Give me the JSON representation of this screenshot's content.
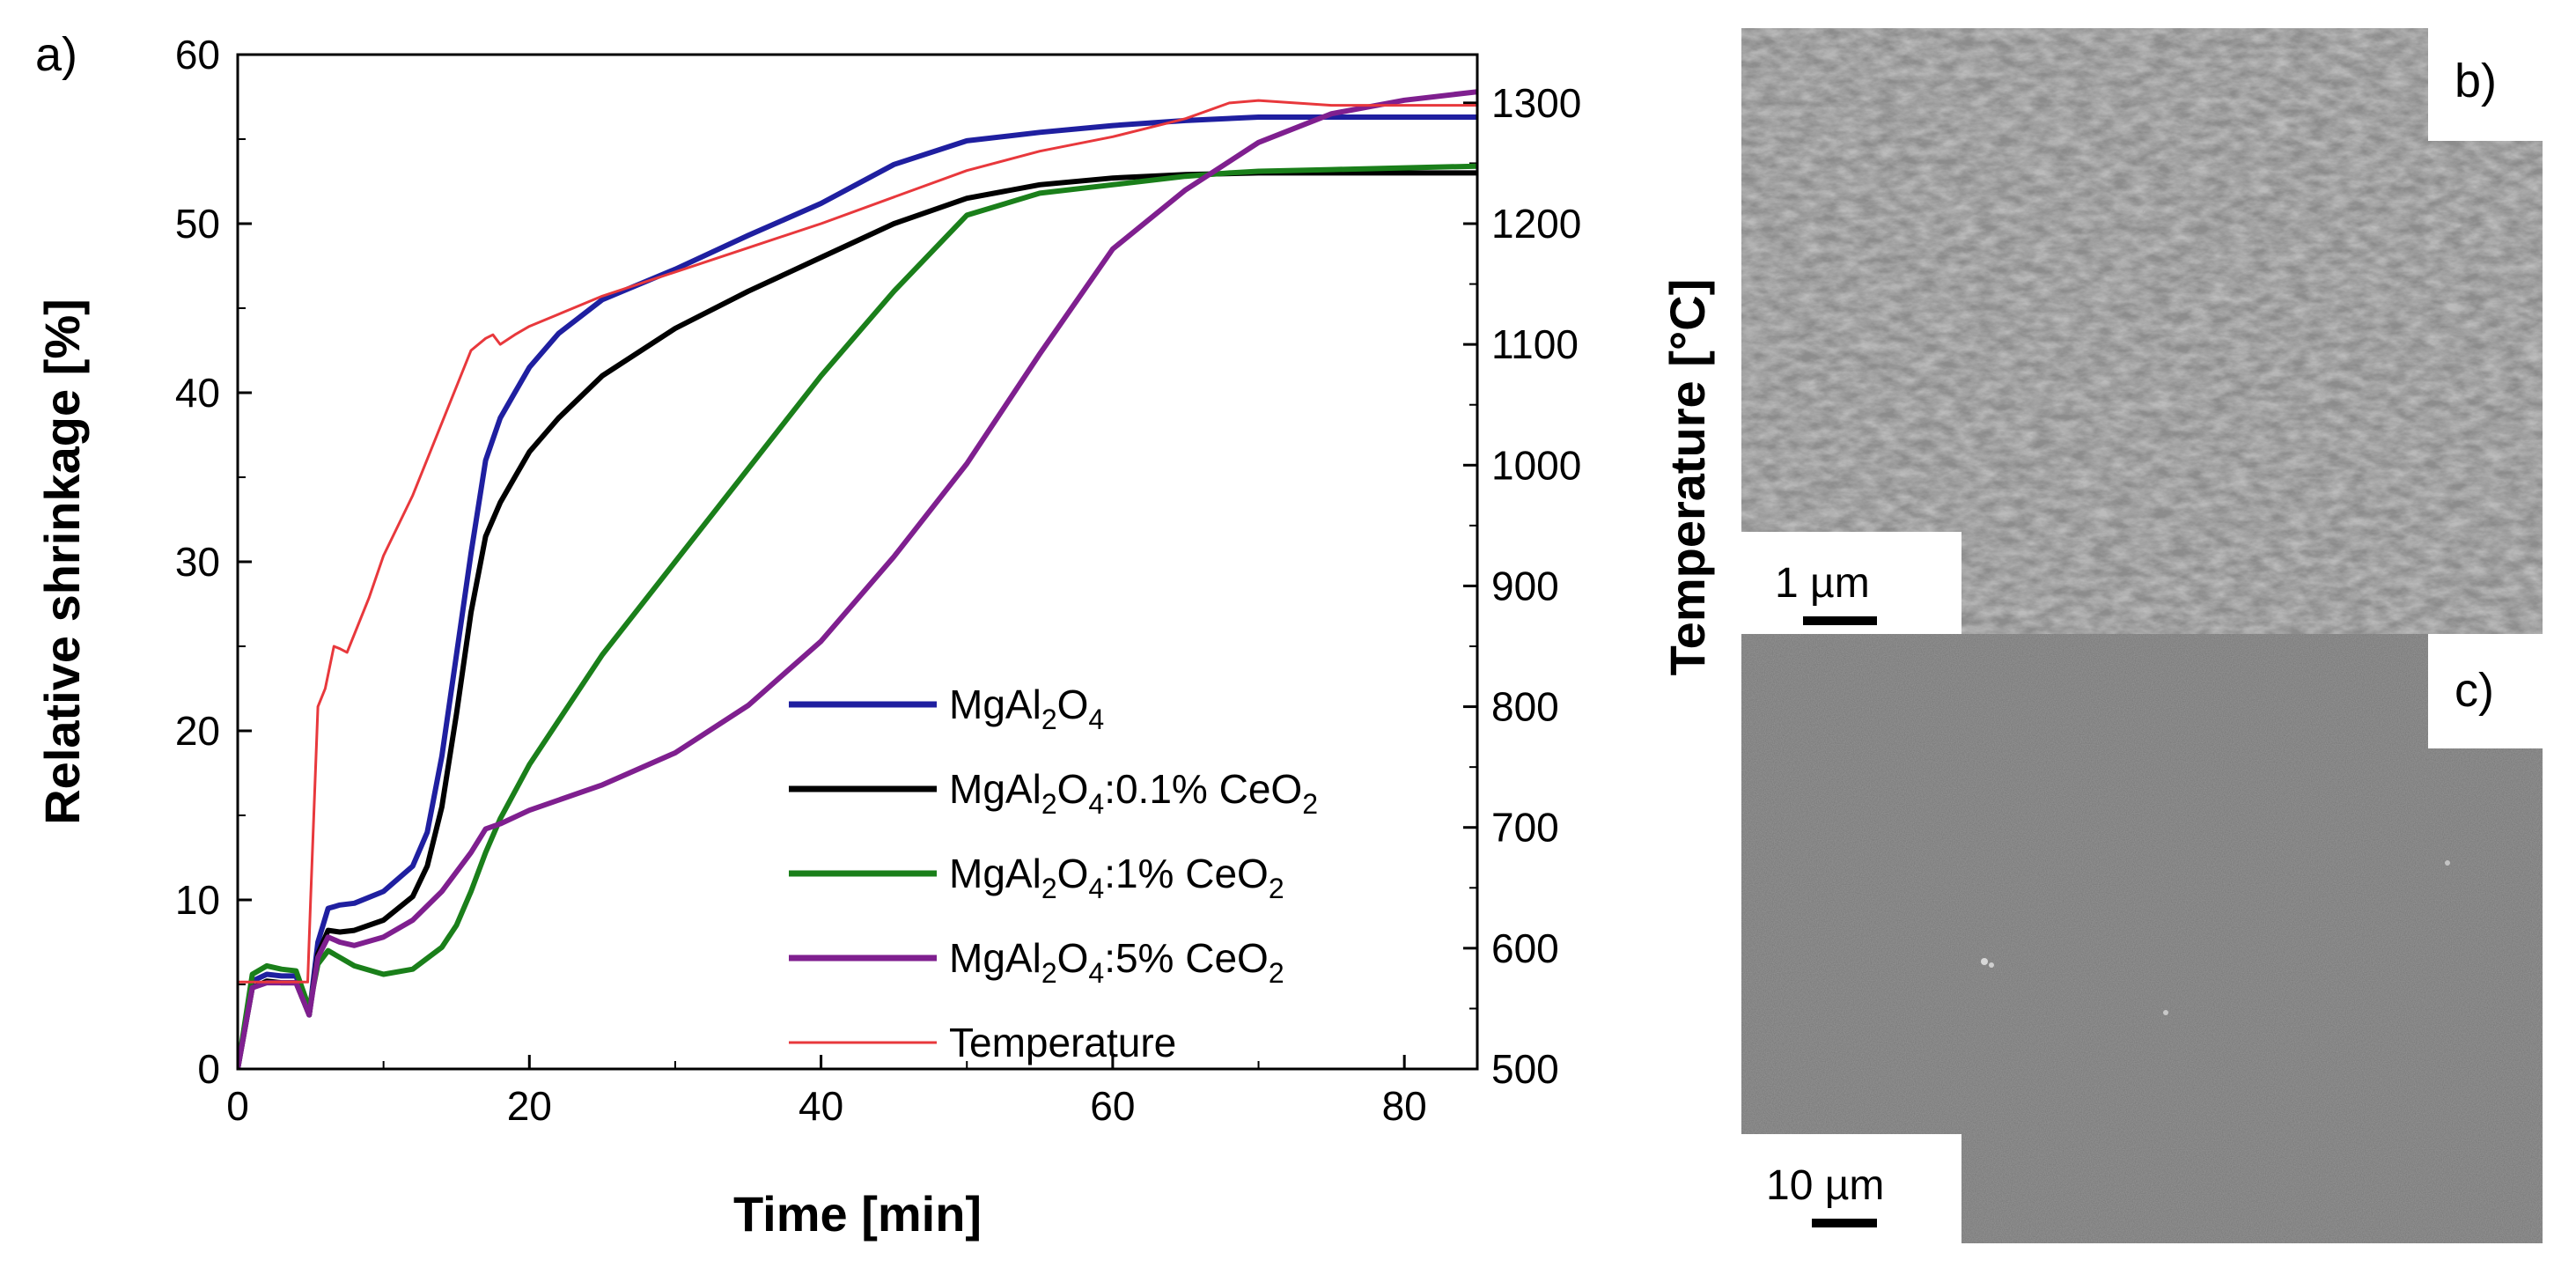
{
  "chart_data": {
    "type": "line",
    "panel_label": "a)",
    "xlabel": "Time [min]",
    "ylabel": "Relative shrinkage [%]",
    "y2label": "Temperature [°C]",
    "xlim": [
      0,
      85
    ],
    "ylim": [
      0,
      60
    ],
    "y2lim": [
      500,
      1340
    ],
    "xticks": [
      "0",
      "20",
      "40",
      "60",
      "80"
    ],
    "yticks": [
      "0",
      "10",
      "20",
      "30",
      "40",
      "50",
      "60"
    ],
    "y2ticks": [
      "500",
      "600",
      "700",
      "800",
      "900",
      "1000",
      "1100",
      "1200",
      "1300"
    ],
    "series": [
      {
        "name": "MgAl2O4",
        "legend": {
          "base": "MgAl",
          "s1": "2",
          "mid": "O",
          "s2": "4",
          "tail": ""
        },
        "color": "#1f1fa0",
        "axis": "left",
        "x": [
          0,
          1,
          2,
          3,
          4,
          4.9,
          5.5,
          6.2,
          7,
          8,
          10,
          12,
          13,
          14,
          15,
          16,
          17,
          18,
          19,
          20,
          22,
          25,
          30,
          35,
          40,
          45,
          50,
          55,
          60,
          65,
          70,
          75,
          80,
          85
        ],
        "y": [
          0,
          5.2,
          5.6,
          5.5,
          5.5,
          3.2,
          7.5,
          9.5,
          9.7,
          9.8,
          10.5,
          12,
          14,
          18.5,
          24.5,
          30.5,
          36,
          38.5,
          40,
          41.5,
          43.5,
          45.5,
          47.3,
          49.3,
          51.2,
          53.5,
          54.9,
          55.4,
          55.8,
          56.1,
          56.3,
          56.3,
          56.3,
          56.3
        ]
      },
      {
        "name": "MgAl2O4:0.1% CeO2",
        "legend": {
          "base": "MgAl",
          "s1": "2",
          "mid": "O",
          "s2": "4",
          "tail": ":0.1% CeO",
          "s3": "2"
        },
        "color": "#000000",
        "axis": "left",
        "x": [
          0,
          1,
          2,
          3,
          4,
          4.9,
          5.5,
          6.2,
          7,
          8,
          10,
          12,
          13,
          14,
          15,
          16,
          17,
          18,
          19,
          20,
          22,
          25,
          30,
          35,
          40,
          45,
          50,
          55,
          60,
          65,
          70,
          75,
          80,
          85
        ],
        "y": [
          0,
          4.8,
          5.2,
          5.1,
          5.1,
          3.2,
          6.8,
          8.2,
          8.1,
          8.2,
          8.8,
          10.2,
          12,
          15.5,
          21,
          27,
          31.5,
          33.5,
          35,
          36.5,
          38.5,
          41,
          43.8,
          46,
          48,
          50,
          51.5,
          52.3,
          52.7,
          52.9,
          53,
          53,
          53,
          53
        ]
      },
      {
        "name": "MgAl2O4:1% CeO2",
        "legend": {
          "base": "MgAl",
          "s1": "2",
          "mid": "O",
          "s2": "4",
          "tail": ":1% CeO",
          "s3": "2"
        },
        "color": "#1a7f1a",
        "axis": "left",
        "x": [
          0,
          1,
          2,
          3,
          4,
          4.9,
          5.5,
          6.2,
          7,
          8,
          10,
          12,
          14,
          15,
          16,
          17,
          18,
          20,
          25,
          30,
          35,
          40,
          45,
          50,
          55,
          60,
          65,
          68,
          70,
          75,
          80,
          85
        ],
        "y": [
          0,
          5.6,
          6.1,
          5.9,
          5.8,
          3.6,
          6.2,
          7,
          6.6,
          6.1,
          5.6,
          5.9,
          7.2,
          8.5,
          10.5,
          12.8,
          14.8,
          18,
          24.5,
          30,
          35.5,
          41,
          46,
          50.5,
          51.8,
          52.3,
          52.8,
          53,
          53.1,
          53.2,
          53.3,
          53.4
        ]
      },
      {
        "name": "MgAl2O4:5% CeO2",
        "legend": {
          "base": "MgAl",
          "s1": "2",
          "mid": "O",
          "s2": "4",
          "tail": ":5% CeO",
          "s3": "2"
        },
        "color": "#7f1f8f",
        "axis": "left",
        "x": [
          0,
          1,
          2,
          3,
          4,
          4.9,
          5.5,
          6.2,
          7,
          8,
          10,
          12,
          14,
          16,
          17,
          18,
          20,
          25,
          30,
          35,
          40,
          45,
          50,
          55,
          60,
          65,
          70,
          75,
          80,
          85
        ],
        "y": [
          0,
          4.8,
          5.1,
          5.1,
          5.1,
          3.2,
          6.6,
          7.8,
          7.5,
          7.3,
          7.8,
          8.8,
          10.5,
          12.8,
          14.2,
          14.5,
          15.3,
          16.8,
          18.7,
          21.5,
          25.3,
          30.3,
          35.8,
          42.3,
          48.5,
          52,
          54.8,
          56.5,
          57.3,
          57.8
        ]
      },
      {
        "name": "Temperature",
        "legend": {
          "base": "Temperature",
          "s1": "",
          "mid": "",
          "s2": "",
          "tail": ""
        },
        "color": "#e8383c",
        "axis": "right",
        "x": [
          0,
          4.8,
          5,
          5.5,
          6,
          6.6,
          7,
          7.5,
          8,
          9,
          10,
          12,
          14,
          16,
          17,
          17.5,
          18,
          19,
          20,
          25,
          30,
          35,
          40,
          45,
          50,
          55,
          60,
          65,
          68,
          70,
          75,
          80,
          85
        ],
        "y": [
          572,
          572,
          640,
          800,
          815,
          850,
          848,
          845,
          860,
          890,
          925,
          975,
          1035,
          1095,
          1105,
          1108,
          1100,
          1108,
          1115,
          1140,
          1160,
          1180,
          1200,
          1222,
          1244,
          1260,
          1272,
          1287,
          1300,
          1302,
          1298,
          1298,
          1298
        ]
      }
    ],
    "legend_position": "lower-right"
  },
  "micrographs": [
    {
      "label": "b)",
      "scale_bar": "1 µm"
    },
    {
      "label": "c)",
      "scale_bar": "10 µm"
    }
  ]
}
